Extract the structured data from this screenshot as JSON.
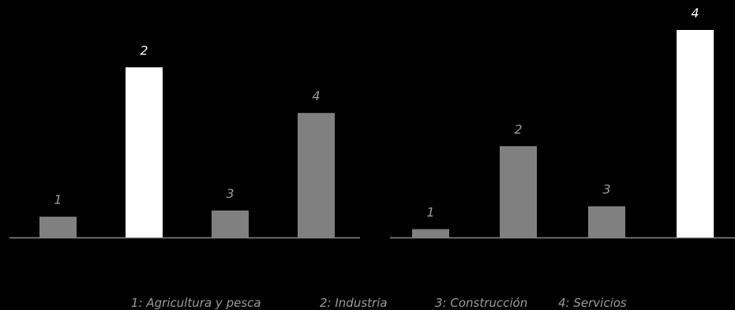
{
  "chart_data": [
    {
      "type": "bar",
      "categories": [
        "1",
        "2",
        "3",
        "4"
      ],
      "values": [
        10,
        82,
        13,
        60
      ],
      "highlight_index": 1,
      "ylim": [
        0,
        100
      ],
      "grid": false
    },
    {
      "type": "bar",
      "categories": [
        "1",
        "2",
        "3",
        "4"
      ],
      "values": [
        4,
        44,
        15,
        100
      ],
      "highlight_index": 3,
      "ylim": [
        0,
        100
      ],
      "grid": false
    }
  ],
  "legend": {
    "placement": "bottom-right",
    "items": [
      "1: Agricultura y pesca",
      "2: Industria",
      "3: Construcción",
      "4: Servicios"
    ]
  },
  "colors": {
    "background": "#000000",
    "bar": "#808080",
    "highlight": "#ffffff",
    "label": "#9a9a9a",
    "axis": "#8a8a8a"
  }
}
